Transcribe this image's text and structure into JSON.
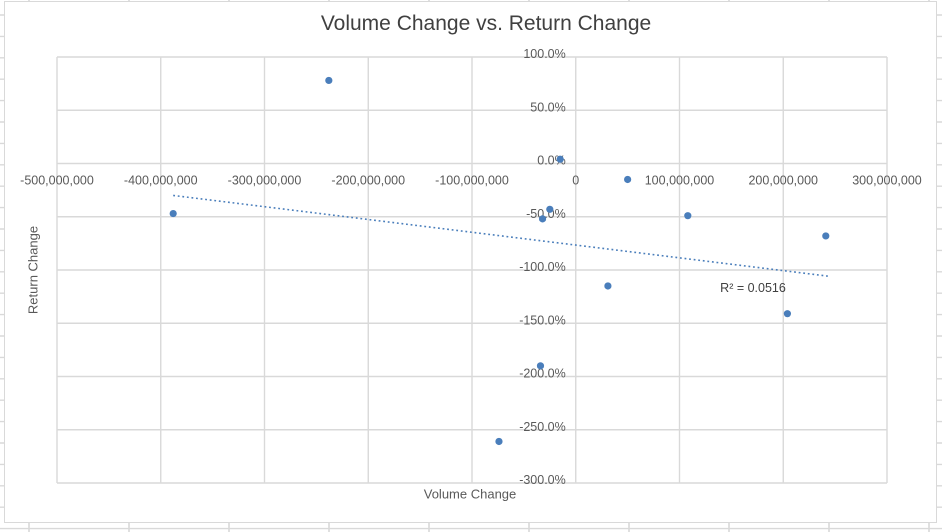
{
  "chart_data": {
    "type": "scatter",
    "title": "Volume Change vs. Return Change",
    "xlabel": "Volume Change",
    "ylabel": "Return Change",
    "legend": "none",
    "grid": true,
    "xlim": [
      -500000000,
      300000000
    ],
    "ylim_percent": [
      -300,
      100
    ],
    "y_unit": "percent",
    "x_ticks": [
      {
        "value": -500000000,
        "label": "-500,000,000"
      },
      {
        "value": -400000000,
        "label": "-400,000,000"
      },
      {
        "value": -300000000,
        "label": "-300,000,000"
      },
      {
        "value": -200000000,
        "label": "-200,000,000"
      },
      {
        "value": -100000000,
        "label": "-100,000,000"
      },
      {
        "value": 0,
        "label": "0"
      },
      {
        "value": 100000000,
        "label": "100,000,000"
      },
      {
        "value": 200000000,
        "label": "200,000,000"
      },
      {
        "value": 300000000,
        "label": "300,000,000"
      }
    ],
    "y_ticks": [
      {
        "value": 100,
        "label": "100.0%"
      },
      {
        "value": 50,
        "label": "50.0%"
      },
      {
        "value": 0,
        "label": "0.0%"
      },
      {
        "value": -50,
        "label": "-50.0%"
      },
      {
        "value": -100,
        "label": "-100.0%"
      },
      {
        "value": -150,
        "label": "-150.0%"
      },
      {
        "value": -200,
        "label": "-200.0%"
      },
      {
        "value": -250,
        "label": "-250.0%"
      },
      {
        "value": -300,
        "label": "-300.0%"
      }
    ],
    "points": [
      {
        "x": -388000000,
        "y": -47
      },
      {
        "x": -238000000,
        "y": 78
      },
      {
        "x": -74000000,
        "y": -261
      },
      {
        "x": -34000000,
        "y": -190
      },
      {
        "x": -32000000,
        "y": -52
      },
      {
        "x": -25000000,
        "y": -43
      },
      {
        "x": -15000000,
        "y": 4
      },
      {
        "x": 31000000,
        "y": -115
      },
      {
        "x": 50000000,
        "y": -15
      },
      {
        "x": 108000000,
        "y": -49
      },
      {
        "x": 204000000,
        "y": -141
      },
      {
        "x": 241000000,
        "y": -68
      }
    ],
    "trendline": {
      "style": "dotted",
      "x_start": -388000000,
      "y_start": -30,
      "x_end": 245000000,
      "y_end": -106,
      "label": "R² = 0.0516",
      "label_center_x": 170000000,
      "label_center_y": -116
    },
    "colors": {
      "marker": "#4a7ebb",
      "trendline": "#4a7ebb",
      "chart_gridline": "#d9d9d9",
      "sheet_gridline": "#d9d9d9",
      "chart_border": "#d9d9d9",
      "axis_text": "#595959",
      "title_text": "#404040",
      "background": "#ffffff"
    }
  }
}
